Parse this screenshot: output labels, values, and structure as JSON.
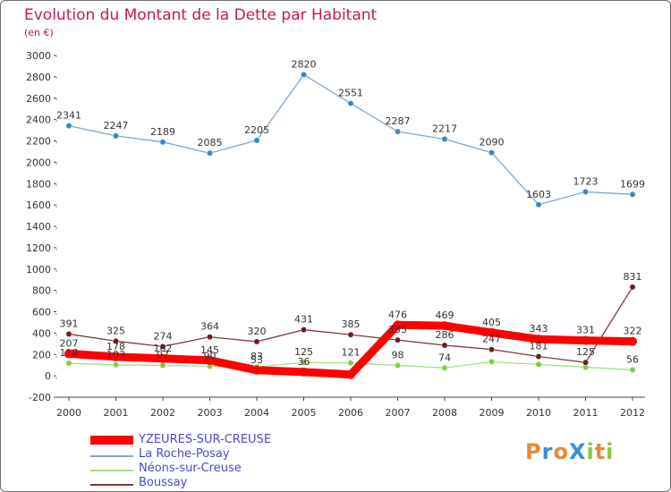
{
  "title": "Evolution du Montant de la Dette par Habitant",
  "unit": "(en €)",
  "brand": "ProXiti",
  "chart_data": {
    "type": "line",
    "categories": [
      "2000",
      "2001",
      "2002",
      "2003",
      "2004",
      "2005",
      "2006",
      "2007",
      "2008",
      "2009",
      "2010",
      "2011",
      "2012"
    ],
    "ylim": [
      -200,
      3000
    ],
    "yticks": [
      -200,
      0,
      200,
      400,
      600,
      800,
      1000,
      1200,
      1400,
      1600,
      1800,
      2000,
      2200,
      2400,
      2600,
      2800,
      3000
    ],
    "grid": false,
    "legend_position": "bottom-left",
    "series": [
      {
        "name": "YZEURES-SUR-CREUSE",
        "color": "#ff0000",
        "values": [
          207,
          178,
          162,
          145,
          53,
          36,
          12,
          476,
          469,
          405,
          343,
          331,
          322
        ],
        "labels": [
          "207",
          "178",
          "162",
          "145",
          "53",
          "36",
          "",
          "476",
          "469",
          "405",
          "343",
          "331",
          "322"
        ],
        "marker_color": "#ff0000"
      },
      {
        "name": "La Roche-Posay",
        "color": "#7fa8cf",
        "values": [
          2341,
          2247,
          2189,
          2085,
          2205,
          2820,
          2551,
          2287,
          2217,
          2090,
          1603,
          1723,
          1699
        ],
        "labels": [
          "2341",
          "2247",
          "2189",
          "2085",
          "2205",
          "2820",
          "2551",
          "2287",
          "2217",
          "2090",
          "1603",
          "1723",
          "1699"
        ],
        "marker_color": "#3a86c8"
      },
      {
        "name": "Néons-sur-Creuse",
        "color": "#a6dd88",
        "values": [
          118,
          103,
          97,
          90,
          83,
          125,
          121,
          98,
          74,
          131,
          107,
          80,
          56
        ],
        "labels": [
          "118",
          "103",
          "97",
          "90",
          "83",
          "125",
          "121",
          "98",
          "74",
          "",
          "",
          "",
          "56"
        ],
        "marker_color": "#7dcf3e"
      },
      {
        "name": "Boussay",
        "color": "#7a3a3a",
        "values": [
          391,
          325,
          274,
          364,
          320,
          431,
          385,
          335,
          286,
          247,
          181,
          125,
          831
        ],
        "labels": [
          "391",
          "325",
          "274",
          "364",
          "320",
          "431",
          "385",
          "335",
          "286",
          "247",
          "181",
          "125",
          "831"
        ],
        "marker_color": "#6b1f1f"
      }
    ]
  }
}
